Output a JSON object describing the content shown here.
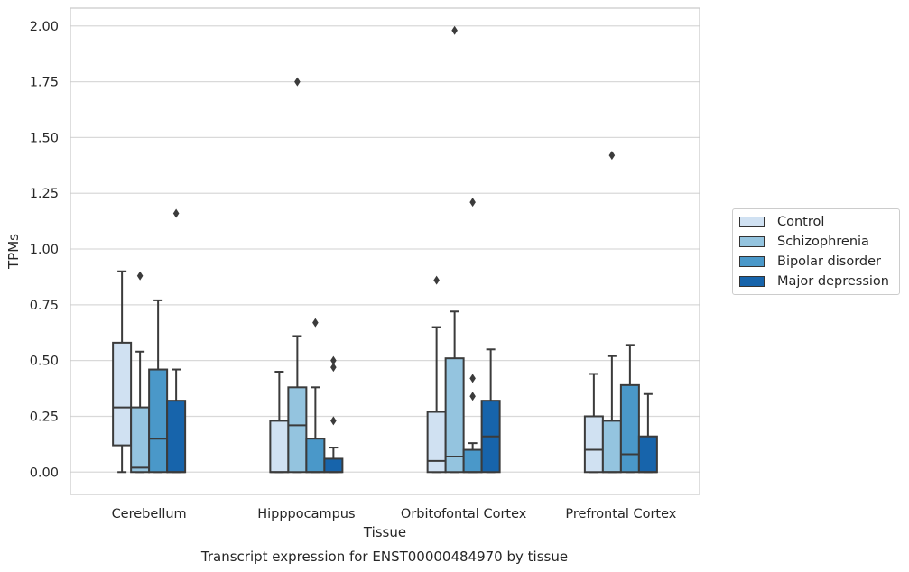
{
  "chart_data": {
    "type": "box",
    "title": "",
    "caption": "Transcript expression for ENST00000484970 by tissue",
    "xlabel": "Tissue",
    "ylabel": "TPMs",
    "ylim": [
      -0.1,
      2.08
    ],
    "yticks": [
      "0.00",
      "0.25",
      "0.50",
      "0.75",
      "1.00",
      "1.25",
      "1.50",
      "1.75",
      "2.00"
    ],
    "ytick_values": [
      0,
      0.25,
      0.5,
      0.75,
      1.0,
      1.25,
      1.5,
      1.75,
      2.0
    ],
    "grid": "horizontal",
    "legend_position": "right",
    "categories": [
      "Cerebellum",
      "Hipppocampus",
      "Orbitofontal Cortex",
      "Prefrontal Cortex"
    ],
    "series": [
      {
        "name": "Control",
        "color": "#d0e1f2",
        "boxes": [
          {
            "whislo": 0.0,
            "q1": 0.12,
            "med": 0.29,
            "q3": 0.58,
            "whishi": 0.9,
            "fliers": []
          },
          {
            "whislo": 0.0,
            "q1": 0.0,
            "med": 0.0,
            "q3": 0.23,
            "whishi": 0.45,
            "fliers": []
          },
          {
            "whislo": 0.0,
            "q1": 0.0,
            "med": 0.05,
            "q3": 0.27,
            "whishi": 0.65,
            "fliers": [
              0.86
            ]
          },
          {
            "whislo": 0.0,
            "q1": 0.0,
            "med": 0.1,
            "q3": 0.25,
            "whishi": 0.44,
            "fliers": []
          }
        ]
      },
      {
        "name": "Schizophrenia",
        "color": "#94c4df",
        "boxes": [
          {
            "whislo": 0.0,
            "q1": 0.0,
            "med": 0.02,
            "q3": 0.29,
            "whishi": 0.54,
            "fliers": [
              0.88
            ]
          },
          {
            "whislo": 0.0,
            "q1": 0.0,
            "med": 0.21,
            "q3": 0.38,
            "whishi": 0.61,
            "fliers": [
              1.75
            ]
          },
          {
            "whislo": 0.0,
            "q1": 0.0,
            "med": 0.07,
            "q3": 0.51,
            "whishi": 0.72,
            "fliers": [
              1.98
            ]
          },
          {
            "whislo": 0.0,
            "q1": 0.0,
            "med": 0.0,
            "q3": 0.23,
            "whishi": 0.52,
            "fliers": [
              1.42
            ]
          }
        ]
      },
      {
        "name": "Bipolar disorder",
        "color": "#4a98c9",
        "boxes": [
          {
            "whislo": 0.0,
            "q1": 0.0,
            "med": 0.15,
            "q3": 0.46,
            "whishi": 0.77,
            "fliers": []
          },
          {
            "whislo": 0.0,
            "q1": 0.0,
            "med": 0.0,
            "q3": 0.15,
            "whishi": 0.38,
            "fliers": [
              0.67
            ]
          },
          {
            "whislo": 0.0,
            "q1": 0.0,
            "med": 0.0,
            "q3": 0.1,
            "whishi": 0.13,
            "fliers": [
              0.34,
              0.42,
              1.21
            ]
          },
          {
            "whislo": 0.0,
            "q1": 0.0,
            "med": 0.08,
            "q3": 0.39,
            "whishi": 0.57,
            "fliers": []
          }
        ]
      },
      {
        "name": "Major depression",
        "color": "#1764ab",
        "boxes": [
          {
            "whislo": 0.0,
            "q1": 0.0,
            "med": 0.0,
            "q3": 0.32,
            "whishi": 0.46,
            "fliers": [
              1.16
            ]
          },
          {
            "whislo": 0.0,
            "q1": 0.0,
            "med": 0.0,
            "q3": 0.06,
            "whishi": 0.11,
            "fliers": [
              0.23,
              0.47,
              0.5
            ]
          },
          {
            "whislo": 0.0,
            "q1": 0.0,
            "med": 0.16,
            "q3": 0.32,
            "whishi": 0.55,
            "fliers": []
          },
          {
            "whislo": 0.0,
            "q1": 0.0,
            "med": 0.0,
            "q3": 0.16,
            "whishi": 0.35,
            "fliers": []
          }
        ]
      }
    ]
  }
}
